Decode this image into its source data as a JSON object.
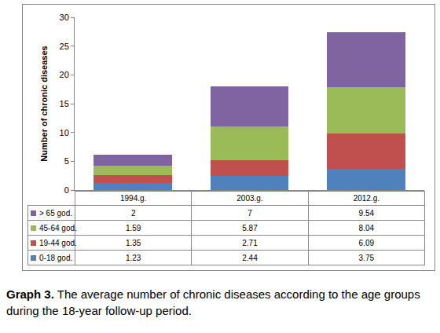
{
  "chart_data": {
    "type": "bar",
    "title": "Graph 3. The average number of chronic diseases according to the age groups during the 18-year follow-up period.",
    "y_label": "Number of chronic diseases",
    "categories": [
      "1994.g.",
      "2003.g.",
      "2012.g."
    ],
    "series": [
      {
        "name": "0-18 god.",
        "color": "#4f81bd",
        "values": [
          1.23,
          2.44,
          3.75
        ]
      },
      {
        "name": "19-44 god.",
        "color": "#c0504d",
        "values": [
          1.35,
          2.71,
          6.09
        ]
      },
      {
        "name": "45-64 god.",
        "color": "#9bbb59",
        "values": [
          1.59,
          5.87,
          8.04
        ]
      },
      {
        "name": "> 65 god.",
        "color": "#8064a2",
        "values": [
          2,
          7,
          9.54
        ]
      }
    ],
    "stacked": true,
    "ylim": [
      0,
      30
    ],
    "yticks": [
      0,
      5,
      10,
      15,
      20,
      25,
      30
    ],
    "grid": false,
    "tick_labels": "y"
  }
}
